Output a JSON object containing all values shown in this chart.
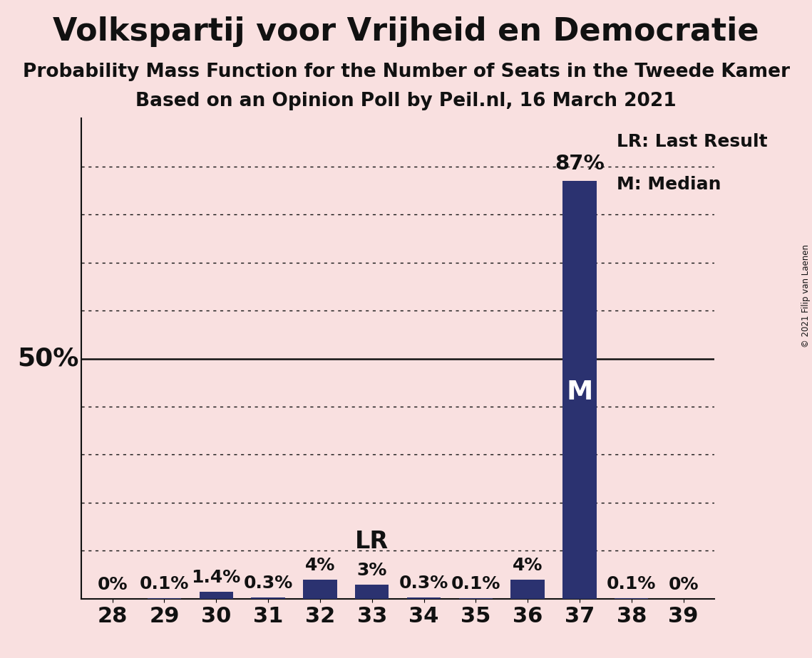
{
  "title": "Volkspartij voor Vrijheid en Democratie",
  "subtitle1": "Probability Mass Function for the Number of Seats in the Tweede Kamer",
  "subtitle2": "Based on an Opinion Poll by Peil.nl, 16 March 2021",
  "copyright": "© 2021 Filip van Laenen",
  "categories": [
    28,
    29,
    30,
    31,
    32,
    33,
    34,
    35,
    36,
    37,
    38,
    39
  ],
  "values": [
    0.0,
    0.1,
    1.4,
    0.3,
    4.0,
    3.0,
    0.3,
    0.1,
    4.0,
    87.0,
    0.1,
    0.0
  ],
  "value_labels": [
    "0%",
    "0.1%",
    "1.4%",
    "0.3%",
    "4%",
    "3%",
    "0.3%",
    "0.1%",
    "4%",
    "87%",
    "0.1%",
    "0%"
  ],
  "bar_color": "#2b3270",
  "background_color": "#f9e0e0",
  "text_color": "#111111",
  "ylim": [
    0,
    100
  ],
  "fifty_pct_label": "50%",
  "last_result_seat": 33,
  "median_seat": 37,
  "lr_label": "LR",
  "m_label": "M",
  "legend_lr": "LR: Last Result",
  "legend_m": "M: Median",
  "title_fontsize": 32,
  "subtitle_fontsize": 19,
  "label_fontsize": 18,
  "tick_fontsize": 22,
  "annotation_fontsize": 21,
  "val_label_fontsize": 18,
  "fifty_fontsize": 26
}
